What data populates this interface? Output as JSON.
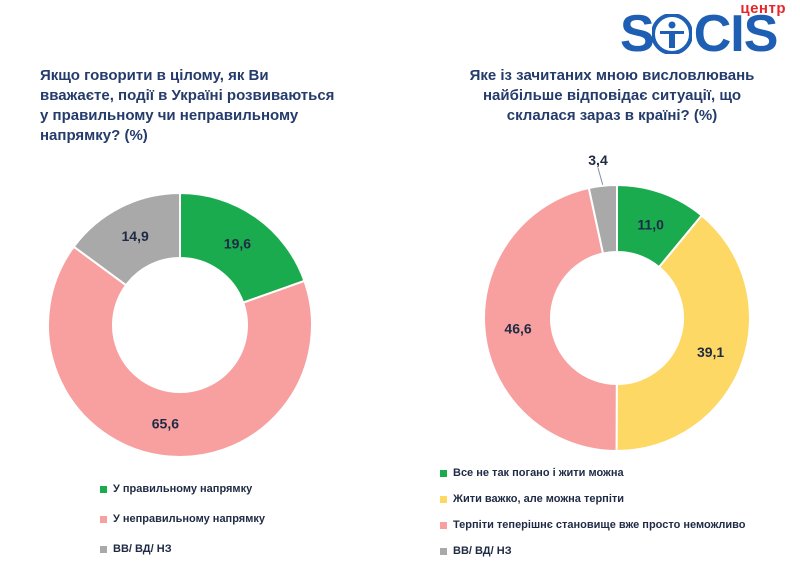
{
  "logo": {
    "centr": "центр",
    "brand_left": "S",
    "brand_right": "CIS"
  },
  "chart_data": [
    {
      "type": "pie",
      "title": "Якщо говорити в цілому, як Ви\nвважаєте, події в Україні розвиваються\nу правильному чи неправильному\nнапрямку? (%)",
      "categories": [
        "У правильному напрямку",
        "У неправильному напрямку",
        "ВВ/ ВД/ НЗ"
      ],
      "values": [
        19.6,
        65.6,
        14.9
      ],
      "labels": [
        "19,6",
        "65,6",
        "14,9"
      ],
      "colors": [
        "#1aab4f",
        "#f8a0a0",
        "#a9a9a9"
      ],
      "donut": true,
      "legend_position": "bottom"
    },
    {
      "type": "pie",
      "title": "Яке із зачитаних мною висловлювань\nнайбільше відповідає ситуації, що\nсклалася зараз в країні? (%)",
      "categories": [
        "Все не так погано і жити можна",
        "Жити важко, але можна терпіти",
        "Терпіти теперішнє становище вже просто неможливо",
        "ВВ/ ВД/ НЗ"
      ],
      "values": [
        11.0,
        39.1,
        46.6,
        3.4
      ],
      "labels": [
        "11,0",
        "39,1",
        "46,6",
        "3,4"
      ],
      "colors": [
        "#1aab4f",
        "#fdd865",
        "#f8a0a0",
        "#a9a9a9"
      ],
      "donut": true,
      "legend_position": "bottom"
    }
  ]
}
